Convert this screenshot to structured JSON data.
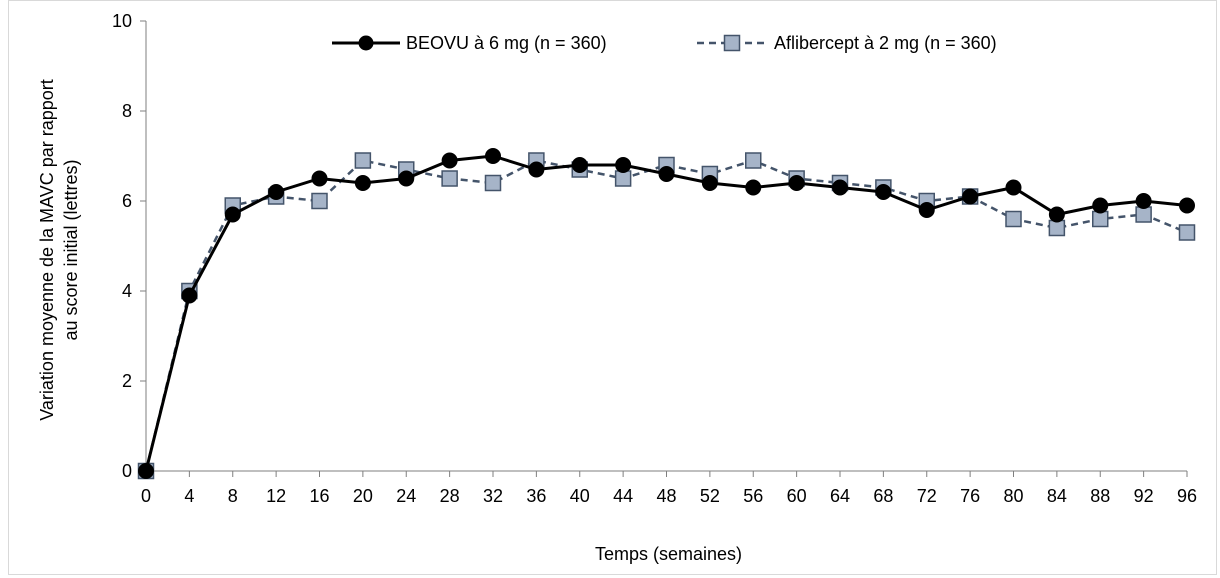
{
  "chart_data": {
    "type": "line",
    "title": "",
    "xlabel": "Temps (semaines)",
    "ylabel_lines": [
      "Variation moyenne de la MAVC par rapport",
      "au score initial (lettres)"
    ],
    "x": [
      0,
      4,
      8,
      12,
      16,
      20,
      24,
      28,
      32,
      36,
      40,
      44,
      48,
      52,
      56,
      60,
      64,
      68,
      72,
      76,
      80,
      84,
      88,
      92,
      96
    ],
    "x_tick_labels": [
      "0",
      "4",
      "8",
      "12",
      "16",
      "20",
      "24",
      "28",
      "32",
      "36",
      "40",
      "44",
      "48",
      "52",
      "56",
      "60",
      "64",
      "68",
      "72",
      "76",
      "80",
      "84",
      "88",
      "92",
      "96"
    ],
    "y_tick_labels": [
      "0",
      "2",
      "4",
      "6",
      "8",
      "10"
    ],
    "xlim": [
      0,
      96
    ],
    "ylim": [
      0,
      10
    ],
    "grid": false,
    "legend_position": "top-center",
    "series": [
      {
        "name": "BEOVU à 6 mg (n = 360)",
        "color": "#000000",
        "marker": "circle",
        "line_style": "solid",
        "values": [
          0,
          3.9,
          5.7,
          6.2,
          6.5,
          6.4,
          6.5,
          6.9,
          7.0,
          6.7,
          6.8,
          6.8,
          6.6,
          6.4,
          6.3,
          6.4,
          6.3,
          6.2,
          5.8,
          6.1,
          6.3,
          5.7,
          5.9,
          6.0,
          5.9
        ]
      },
      {
        "name": "Aflibercept à 2 mg (n = 360)",
        "color": "#44546a",
        "marker_fill": "#a6b4c8",
        "marker": "square",
        "line_style": "dashed",
        "values": [
          0,
          4.0,
          5.9,
          6.1,
          6.0,
          6.9,
          6.7,
          6.5,
          6.4,
          6.9,
          6.7,
          6.5,
          6.8,
          6.6,
          6.9,
          6.5,
          6.4,
          6.3,
          6.0,
          6.1,
          5.6,
          5.4,
          5.6,
          5.7,
          5.3
        ]
      }
    ]
  }
}
